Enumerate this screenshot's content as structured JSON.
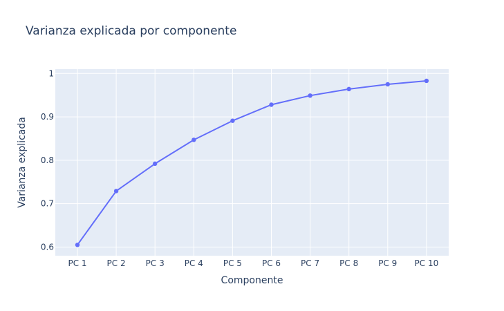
{
  "colors": {
    "plot_background": "#e5ecf6",
    "grid": "#ffffff",
    "line": "#636efa",
    "text": "#2a3f5f"
  },
  "chart_data": {
    "type": "line",
    "title": "Varianza explicada por componente",
    "xlabel": "Componente",
    "ylabel": "Varianza explicada",
    "categories": [
      "PC 1",
      "PC 2",
      "PC 3",
      "PC 4",
      "PC 5",
      "PC 6",
      "PC 7",
      "PC 8",
      "PC 9",
      "PC 10"
    ],
    "series": [
      {
        "values": [
          0.605,
          0.729,
          0.792,
          0.847,
          0.891,
          0.928,
          0.949,
          0.964,
          0.975,
          0.983
        ],
        "mode": "lines+markers"
      }
    ],
    "ylim": [
      0.58,
      1.01
    ],
    "yticks": [
      0.6,
      0.7,
      0.8,
      0.9,
      1
    ],
    "ytick_labels": [
      "0.6",
      "0.7",
      "0.8",
      "0.9",
      "1"
    ],
    "grid": true,
    "legend": "none"
  }
}
